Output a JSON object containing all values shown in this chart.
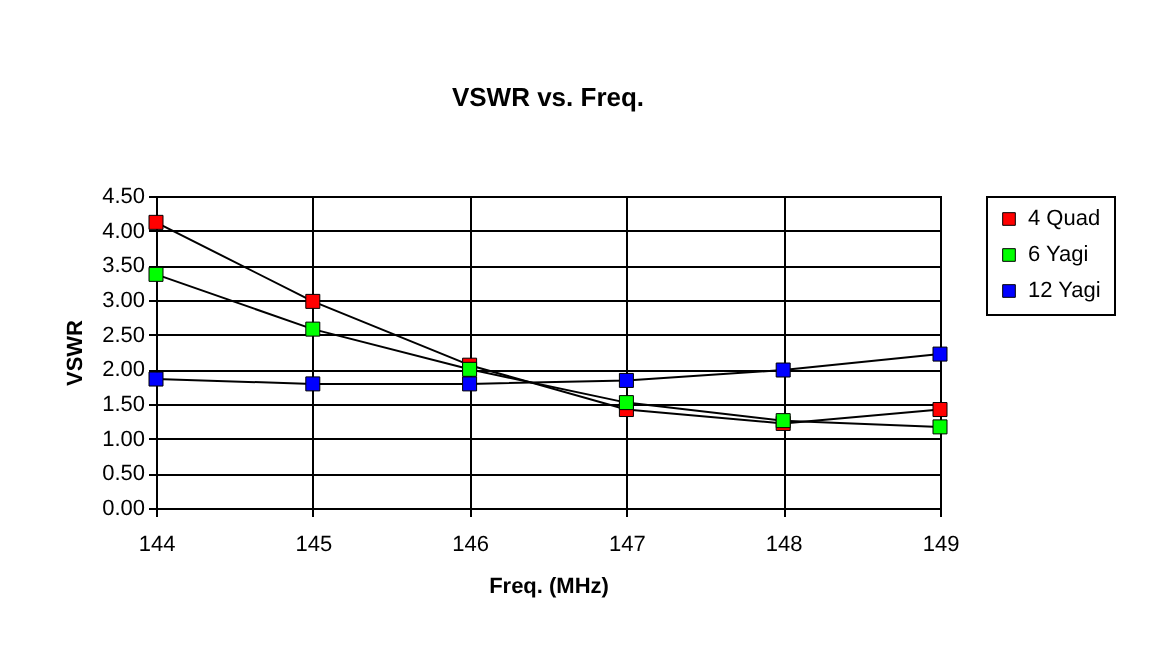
{
  "chart_data": {
    "type": "line",
    "title": "VSWR vs. Freq.",
    "xlabel": "Freq. (MHz)",
    "ylabel": "VSWR",
    "x": [
      144,
      145,
      146,
      147,
      148,
      149
    ],
    "series": [
      {
        "name": "4 Quad",
        "color": "#ff0000",
        "values": [
          4.12,
          2.98,
          2.06,
          1.42,
          1.22,
          1.42
        ]
      },
      {
        "name": "6 Yagi",
        "color": "#00ff00",
        "values": [
          3.37,
          2.58,
          2.0,
          1.52,
          1.26,
          1.17
        ]
      },
      {
        "name": "12 Yagi",
        "color": "#0000ff",
        "values": [
          1.86,
          1.79,
          1.79,
          1.84,
          1.99,
          2.22
        ]
      }
    ],
    "xlim": [
      144,
      149
    ],
    "xticks": [
      144,
      145,
      146,
      147,
      148,
      149
    ],
    "ylim": [
      0,
      4.5
    ],
    "yticks": [
      {
        "value": 0,
        "label": "0.00"
      },
      {
        "value": 0.5,
        "label": "0.50"
      },
      {
        "value": 1,
        "label": "1.00"
      },
      {
        "value": 1.5,
        "label": "1.50"
      },
      {
        "value": 2,
        "label": "2.00"
      },
      {
        "value": 2.5,
        "label": "2.50"
      },
      {
        "value": 3,
        "label": "3.00"
      },
      {
        "value": 3.5,
        "label": "3.50"
      },
      {
        "value": 4,
        "label": "4.00"
      },
      {
        "value": 4.5,
        "label": "4.50"
      }
    ],
    "grid": true,
    "legend": "right",
    "marker": "square",
    "line_style": "solid"
  }
}
